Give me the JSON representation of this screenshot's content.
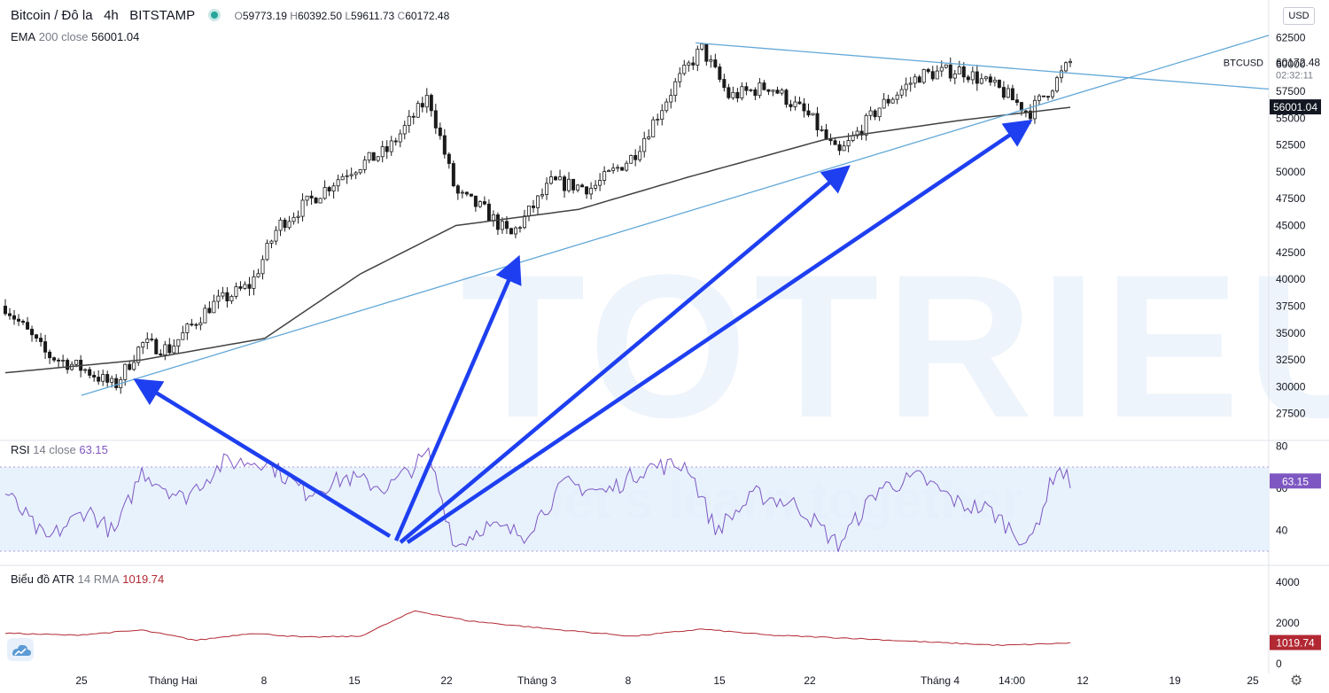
{
  "header": {
    "symbol": "Bitcoin / Đô la",
    "interval": "4h",
    "exchange": "BITSTAMP",
    "open_label": "O",
    "open": "59773.19",
    "high_label": "H",
    "high": "60392.50",
    "low_label": "L",
    "low": "59611.73",
    "close_label": "C",
    "close": "60172.48",
    "currency_button": "USD"
  },
  "indicators": {
    "ema": {
      "name": "EMA",
      "params": "200 close",
      "value": "56001.04"
    },
    "rsi": {
      "name": "RSI",
      "params": "14 close",
      "value": "63.15"
    },
    "atr": {
      "name": "Biểu đồ ATR",
      "params": "14 RMA",
      "value": "1019.74"
    }
  },
  "price_labels": {
    "symbol": "BTCUSD",
    "price": "60172.48",
    "countdown": "02:32:11",
    "ema": "56001.04",
    "rsi": "63.15",
    "atr": "1019.74"
  },
  "watermark": {
    "brand": "TOTRIEU",
    "slogan": "let's learn together"
  },
  "colors": {
    "accent": "#2962ff",
    "rsi": "#7e57c2",
    "atr": "#b22833",
    "ema": "#424242",
    "trend": "#63a8d8",
    "arrow": "#1e3ff0",
    "price_tag": "#131722"
  },
  "chart_data": {
    "type": "candlestick",
    "timeframe": "4h",
    "x_ticks": [
      "25",
      "Tháng Hai",
      "8",
      "15",
      "22",
      "Tháng 3",
      "8",
      "15",
      "22",
      "Tháng 4",
      "14:00",
      "12",
      "19",
      "25"
    ],
    "price_axis": {
      "ticks": [
        27500,
        30000,
        32500,
        35000,
        37500,
        40000,
        42500,
        45000,
        47500,
        50000,
        52500,
        55000,
        57500,
        60000,
        62500
      ],
      "range": [
        25000,
        65000
      ]
    },
    "rsi_axis": {
      "ticks": [
        40,
        60,
        80
      ],
      "band": [
        30,
        70
      ]
    },
    "atr_axis": {
      "ticks": [
        0,
        2000,
        4000
      ]
    },
    "price_keypoints": [
      {
        "x": 0,
        "y": 37500
      },
      {
        "x": 3,
        "y": 33000
      },
      {
        "x": 6,
        "y": 31500
      },
      {
        "x": 8,
        "y": 30000
      },
      {
        "x": 10,
        "y": 34000
      },
      {
        "x": 12,
        "y": 33500
      },
      {
        "x": 15,
        "y": 37500
      },
      {
        "x": 18,
        "y": 39500
      },
      {
        "x": 20,
        "y": 45000
      },
      {
        "x": 22,
        "y": 47000
      },
      {
        "x": 25,
        "y": 50000
      },
      {
        "x": 28,
        "y": 52000
      },
      {
        "x": 31,
        "y": 57000
      },
      {
        "x": 33,
        "y": 48000
      },
      {
        "x": 35,
        "y": 46500
      },
      {
        "x": 37,
        "y": 44000
      },
      {
        "x": 40,
        "y": 49000
      },
      {
        "x": 43,
        "y": 48500
      },
      {
        "x": 46,
        "y": 51500
      },
      {
        "x": 49,
        "y": 58000
      },
      {
        "x": 51,
        "y": 61500
      },
      {
        "x": 53,
        "y": 57000
      },
      {
        "x": 56,
        "y": 58000
      },
      {
        "x": 59,
        "y": 55000
      },
      {
        "x": 61,
        "y": 51500
      },
      {
        "x": 64,
        "y": 56000
      },
      {
        "x": 67,
        "y": 59000
      },
      {
        "x": 70,
        "y": 59500
      },
      {
        "x": 73,
        "y": 57500
      },
      {
        "x": 75,
        "y": 55500
      },
      {
        "x": 77,
        "y": 58500
      },
      {
        "x": 78,
        "y": 60200
      }
    ],
    "ema_keypoints": [
      {
        "x": 0,
        "y": 31300
      },
      {
        "x": 10,
        "y": 32500
      },
      {
        "x": 19,
        "y": 34500
      },
      {
        "x": 26,
        "y": 40500
      },
      {
        "x": 33,
        "y": 45000
      },
      {
        "x": 42,
        "y": 46500
      },
      {
        "x": 50,
        "y": 49500
      },
      {
        "x": 60,
        "y": 53000
      },
      {
        "x": 70,
        "y": 54800
      },
      {
        "x": 78,
        "y": 56000
      }
    ],
    "rsi_keypoints": [
      {
        "x": 0,
        "y": 58
      },
      {
        "x": 3,
        "y": 35
      },
      {
        "x": 6,
        "y": 50
      },
      {
        "x": 8,
        "y": 38
      },
      {
        "x": 10,
        "y": 68
      },
      {
        "x": 13,
        "y": 55
      },
      {
        "x": 16,
        "y": 72
      },
      {
        "x": 19,
        "y": 73
      },
      {
        "x": 22,
        "y": 58
      },
      {
        "x": 25,
        "y": 65
      },
      {
        "x": 28,
        "y": 60
      },
      {
        "x": 31,
        "y": 76
      },
      {
        "x": 33,
        "y": 32
      },
      {
        "x": 35,
        "y": 42
      },
      {
        "x": 38,
        "y": 38
      },
      {
        "x": 41,
        "y": 62
      },
      {
        "x": 44,
        "y": 58
      },
      {
        "x": 47,
        "y": 70
      },
      {
        "x": 50,
        "y": 71
      },
      {
        "x": 52,
        "y": 40
      },
      {
        "x": 55,
        "y": 57
      },
      {
        "x": 58,
        "y": 52
      },
      {
        "x": 61,
        "y": 33
      },
      {
        "x": 64,
        "y": 60
      },
      {
        "x": 67,
        "y": 65
      },
      {
        "x": 70,
        "y": 52
      },
      {
        "x": 72,
        "y": 50
      },
      {
        "x": 75,
        "y": 33
      },
      {
        "x": 77,
        "y": 70
      },
      {
        "x": 78,
        "y": 63
      }
    ],
    "atr_keypoints": [
      {
        "x": 0,
        "y": 1500
      },
      {
        "x": 5,
        "y": 1400
      },
      {
        "x": 10,
        "y": 1650
      },
      {
        "x": 14,
        "y": 1150
      },
      {
        "x": 18,
        "y": 1500
      },
      {
        "x": 22,
        "y": 1300
      },
      {
        "x": 26,
        "y": 1350
      },
      {
        "x": 30,
        "y": 2600
      },
      {
        "x": 34,
        "y": 2100
      },
      {
        "x": 40,
        "y": 1700
      },
      {
        "x": 46,
        "y": 1350
      },
      {
        "x": 51,
        "y": 1700
      },
      {
        "x": 56,
        "y": 1400
      },
      {
        "x": 62,
        "y": 1250
      },
      {
        "x": 68,
        "y": 1050
      },
      {
        "x": 73,
        "y": 900
      },
      {
        "x": 78,
        "y": 1020
      }
    ]
  }
}
